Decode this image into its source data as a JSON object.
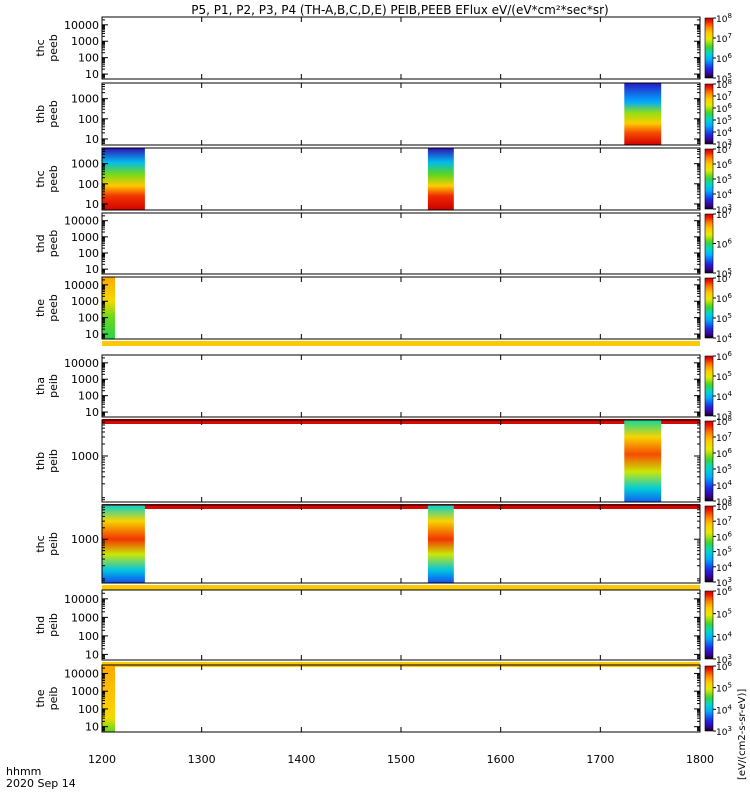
{
  "title": "P5, P1, P2, P3, P4 (TH-A,B,C,D,E) PEIB,PEEB EFlux eV/(eV*cm²*sec*sr)",
  "colorbar_unit_label": "[eV/(cm2-s-sr-eV)]",
  "time_label": "hhmm",
  "date_label": "2020 Sep 14",
  "chart_data": {
    "type": "heatmap",
    "title": "P5, P1, P2, P3, P4 (TH-A,B,C,D,E) PEIB,PEEB EFlux eV/(eV*cm²*sec*sr)",
    "x_axis": {
      "range": [
        1200,
        1800
      ],
      "ticks": [
        1200,
        1300,
        1400,
        1500,
        1600,
        1700,
        1800
      ],
      "label": "hhmm"
    },
    "panels": [
      {
        "name": "thc peeb",
        "ylabel": [
          "thc",
          "peeb"
        ],
        "yscale": "log",
        "ylim": [
          5,
          30000
        ],
        "yticks": [
          10,
          100,
          1000,
          10000
        ],
        "ytick_labels": [
          "10",
          "100",
          "1000",
          "10000"
        ],
        "colorbar": {
          "min_exp": 5,
          "max_exp": 8,
          "tick_exps": [
            5,
            6,
            7,
            8
          ]
        },
        "blocks": [],
        "bands": []
      },
      {
        "name": "thb peeb",
        "ylabel": [
          "thb",
          "peeb"
        ],
        "yscale": "log",
        "ylim": [
          5,
          6000
        ],
        "yticks": [
          10,
          100,
          1000
        ],
        "ytick_labels": [
          "10",
          "100",
          "1000"
        ],
        "colorbar": {
          "min_exp": 3,
          "max_exp": 8,
          "tick_exps": [
            3,
            4,
            5,
            6,
            7,
            8
          ]
        },
        "blocks": [
          {
            "t0": 1724,
            "t1": 1761,
            "stops": [
              {
                "y": 6,
                "v": 0.98
              },
              {
                "y": 20,
                "v": 0.9
              },
              {
                "y": 60,
                "v": 0.74
              },
              {
                "y": 200,
                "v": 0.58
              },
              {
                "y": 700,
                "v": 0.3
              },
              {
                "y": 6000,
                "v": 0.12
              }
            ]
          }
        ],
        "bands": []
      },
      {
        "name": "thc peeb",
        "ylabel": [
          "thc",
          "peeb"
        ],
        "yscale": "log",
        "ylim": [
          5,
          6000
        ],
        "yticks": [
          10,
          100,
          1000
        ],
        "ytick_labels": [
          "10",
          "100",
          "1000"
        ],
        "colorbar": {
          "min_exp": 3,
          "max_exp": 7,
          "tick_exps": [
            3,
            4,
            5,
            6,
            7
          ]
        },
        "blocks": [
          {
            "t0": 1200,
            "t1": 1243,
            "stops": [
              {
                "y": 6,
                "v": 0.98
              },
              {
                "y": 25,
                "v": 0.92
              },
              {
                "y": 80,
                "v": 0.76
              },
              {
                "y": 300,
                "v": 0.56
              },
              {
                "y": 1200,
                "v": 0.34
              },
              {
                "y": 6000,
                "v": 0.1
              }
            ]
          },
          {
            "t0": 1527,
            "t1": 1553,
            "stops": [
              {
                "y": 6,
                "v": 0.99
              },
              {
                "y": 25,
                "v": 0.93
              },
              {
                "y": 80,
                "v": 0.74
              },
              {
                "y": 300,
                "v": 0.54
              },
              {
                "y": 1200,
                "v": 0.34
              },
              {
                "y": 6000,
                "v": 0.1
              }
            ]
          }
        ],
        "bands": []
      },
      {
        "name": "thd peeb",
        "ylabel": [
          "thd",
          "peeb"
        ],
        "yscale": "log",
        "ylim": [
          5,
          30000
        ],
        "yticks": [
          10,
          100,
          1000,
          10000
        ],
        "ytick_labels": [
          "10",
          "100",
          "1000",
          "10000"
        ],
        "colorbar": {
          "min_exp": 5,
          "max_exp": 7,
          "tick_exps": [
            5,
            6,
            7
          ]
        },
        "blocks": [],
        "bands": []
      },
      {
        "name": "the peeb",
        "ylabel": [
          "the",
          "peeb"
        ],
        "yscale": "log",
        "ylim": [
          5,
          30000
        ],
        "yticks": [
          10,
          100,
          1000,
          10000
        ],
        "ytick_labels": [
          "10",
          "100",
          "1000",
          "10000"
        ],
        "colorbar": {
          "min_exp": 4,
          "max_exp": 7,
          "tick_exps": [
            4,
            5,
            6,
            7
          ]
        },
        "blocks": [
          {
            "t0": 1200,
            "t1": 1213,
            "stops": [
              {
                "y": 6,
                "v": 0.5
              },
              {
                "y": 100,
                "v": 0.55
              },
              {
                "y": 1000,
                "v": 0.7
              },
              {
                "y": 30000,
                "v": 0.8
              }
            ]
          }
        ],
        "bands": [
          {
            "y": 2,
            "v": 0.76
          }
        ]
      },
      {
        "name": "tha peib",
        "ylabel": [
          "tha",
          "peib"
        ],
        "yscale": "log",
        "ylim": [
          5,
          30000
        ],
        "yticks": [
          10,
          100,
          1000,
          10000
        ],
        "ytick_labels": [
          "10",
          "100",
          "1000",
          "10000"
        ],
        "colorbar": {
          "min_exp": 3,
          "max_exp": 6,
          "tick_exps": [
            3,
            4,
            5,
            6
          ]
        },
        "blocks": [],
        "bands": [
          {
            "y": 2,
            "v": 0.98
          }
        ]
      },
      {
        "name": "thb peib",
        "ylabel": [
          "thb",
          "peib"
        ],
        "yscale": "log",
        "ylim": [
          70,
          8000
        ],
        "yticks": [
          1000
        ],
        "ytick_labels": [
          "1000"
        ],
        "colorbar": {
          "min_exp": 3,
          "max_exp": 8,
          "tick_exps": [
            3,
            4,
            5,
            6,
            7,
            8
          ]
        },
        "blocks": [
          {
            "t0": 1724,
            "t1": 1761,
            "stops": [
              {
                "y": 70,
                "v": 0.22
              },
              {
                "y": 150,
                "v": 0.38
              },
              {
                "y": 400,
                "v": 0.62
              },
              {
                "y": 1100,
                "v": 0.9
              },
              {
                "y": 3000,
                "v": 0.72
              },
              {
                "y": 8000,
                "v": 0.45
              }
            ]
          }
        ],
        "bands": [
          {
            "y": 2,
            "v": 0.98
          }
        ]
      },
      {
        "name": "thc peib",
        "ylabel": [
          "thc",
          "peib"
        ],
        "yscale": "log",
        "ylim": [
          70,
          8000
        ],
        "yticks": [
          1000
        ],
        "ytick_labels": [
          "1000"
        ],
        "colorbar": {
          "min_exp": 3,
          "max_exp": 8,
          "tick_exps": [
            3,
            4,
            5,
            6,
            7,
            8
          ]
        },
        "blocks": [
          {
            "t0": 1200,
            "t1": 1243,
            "stops": [
              {
                "y": 70,
                "v": 0.2
              },
              {
                "y": 150,
                "v": 0.36
              },
              {
                "y": 400,
                "v": 0.62
              },
              {
                "y": 1000,
                "v": 0.92
              },
              {
                "y": 3000,
                "v": 0.72
              },
              {
                "y": 8000,
                "v": 0.4
              }
            ]
          },
          {
            "t0": 1527,
            "t1": 1553,
            "stops": [
              {
                "y": 70,
                "v": 0.2
              },
              {
                "y": 150,
                "v": 0.36
              },
              {
                "y": 400,
                "v": 0.62
              },
              {
                "y": 1000,
                "v": 0.92
              },
              {
                "y": 3000,
                "v": 0.72
              },
              {
                "y": 8000,
                "v": 0.4
              }
            ]
          }
        ],
        "bands": [
          {
            "y": 2,
            "v": 0.76
          }
        ]
      },
      {
        "name": "thd peib",
        "ylabel": [
          "thd",
          "peib"
        ],
        "yscale": "log",
        "ylim": [
          5,
          30000
        ],
        "yticks": [
          10,
          100,
          1000,
          10000
        ],
        "ytick_labels": [
          "10",
          "100",
          "1000",
          "10000"
        ],
        "colorbar": {
          "min_exp": 3,
          "max_exp": 6,
          "tick_exps": [
            3,
            4,
            5,
            6
          ]
        },
        "blocks": [],
        "bands": [
          {
            "y": 2,
            "v": 0.76
          }
        ]
      },
      {
        "name": "the peib",
        "ylabel": [
          "the",
          "peib"
        ],
        "yscale": "log",
        "ylim": [
          5,
          30000
        ],
        "yticks": [
          10,
          100,
          1000,
          10000
        ],
        "ytick_labels": [
          "10",
          "100",
          "1000",
          "10000"
        ],
        "colorbar": {
          "min_exp": 3,
          "max_exp": 6,
          "tick_exps": [
            3,
            4,
            5,
            6
          ]
        },
        "blocks": [
          {
            "t0": 1200,
            "t1": 1213,
            "stops": [
              {
                "y": 6,
                "v": 0.55
              },
              {
                "y": 30,
                "v": 0.7
              },
              {
                "y": 300,
                "v": 0.76
              },
              {
                "y": 30000,
                "v": 0.8
              }
            ]
          }
        ],
        "bands": []
      }
    ]
  }
}
